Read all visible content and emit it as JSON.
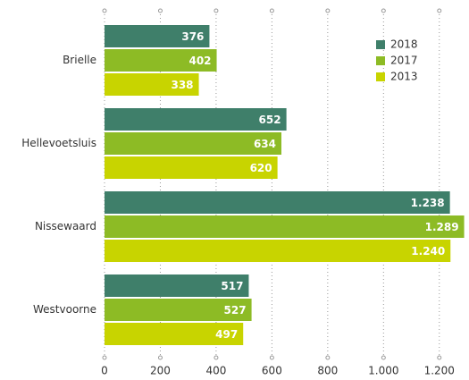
{
  "chart_data": {
    "type": "bar",
    "orientation": "horizontal",
    "categories": [
      "Brielle",
      "Hellevoetsluis",
      "Nissewaard",
      "Westvoorne"
    ],
    "series": [
      {
        "name": "2018",
        "color": "#3f7f6a",
        "values": [
          376,
          652,
          1238,
          517
        ],
        "value_labels": [
          "376",
          "652",
          "1.238",
          "517"
        ]
      },
      {
        "name": "2017",
        "color": "#8dbb25",
        "values": [
          402,
          634,
          1289,
          527
        ],
        "value_labels": [
          "402",
          "634",
          "1.289",
          "527"
        ]
      },
      {
        "name": "2013",
        "color": "#c8d400",
        "values": [
          338,
          620,
          1240,
          497
        ],
        "value_labels": [
          "338",
          "620",
          "1.240",
          "497"
        ]
      }
    ],
    "xlim": [
      0,
      1300
    ],
    "xticks": [
      0,
      200,
      400,
      600,
      800,
      {
        "value": 1000,
        "label": "1.000"
      },
      {
        "value": 1200,
        "label": "1.200"
      }
    ],
    "grid": true,
    "legend": "top-right"
  }
}
